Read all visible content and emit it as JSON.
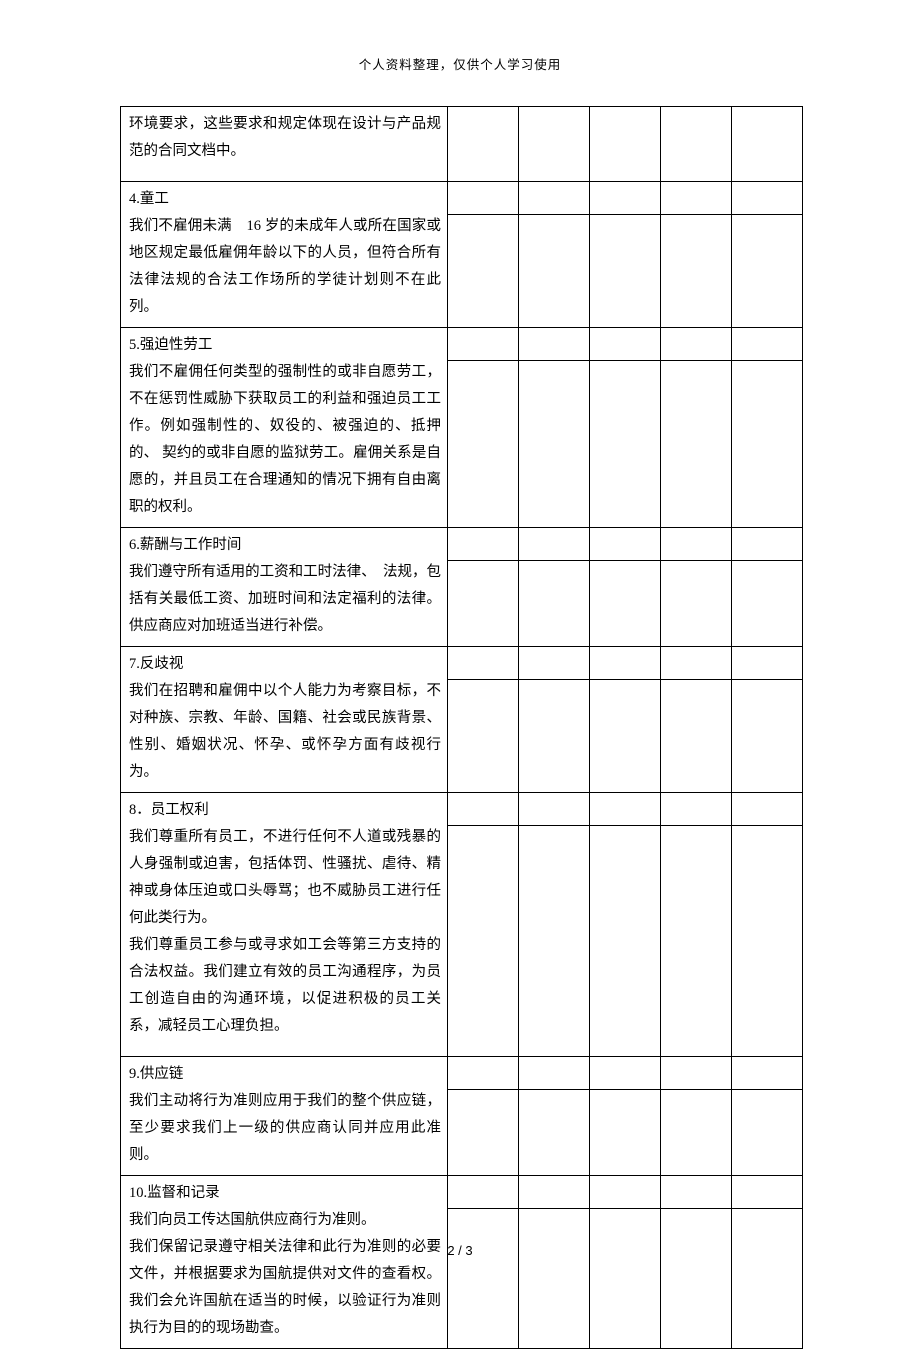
{
  "header": "个人资料整理，仅供个人学习使用",
  "footer": "2 / 3",
  "rows": [
    {
      "title": "",
      "body": "环境要求，这些要求和规定体现在设计与产品规范的合同文档中。",
      "extra_spacer": true,
      "no_upper_boxes": true
    },
    {
      "title": "4.童工",
      "body": "我们不雇佣未满　16 岁的未成年人或所在国家或地区规定最低雇佣年龄以下的人员，但符合所有法律法规的合法工作场所的学徒计划则不在此列。"
    },
    {
      "title": "5.强迫性劳工",
      "body": "我们不雇佣任何类型的强制性的或非自愿劳工，不在惩罚性威胁下获取员工的利益和强迫员工工作。例如强制性的、奴役的、被强迫的、抵押的、 契约的或非自愿的监狱劳工。雇佣关系是自愿的，并且员工在合理通知的情况下拥有自由离职的权利。"
    },
    {
      "title": "6.薪酬与工作时间",
      "body": "我们遵守所有适用的工资和工时法律、　法规，包括有关最低工资、加班时间和法定福利的法律。供应商应对加班适当进行补偿。"
    },
    {
      "title": "7.反歧视",
      "body": "我们在招聘和雇佣中以个人能力为考察目标，不对种族、宗教、年龄、国籍、社会或民族背景、性别、婚姻状况、怀孕、或怀孕方面有歧视行为。"
    },
    {
      "title": "8．员工权利",
      "body": "我们尊重所有员工，不进行任何不人道或残暴的人身强制或迫害，包括体罚、性骚扰、虐待、精神或身体压迫或口头辱骂；也不威胁员工进行任何此类行为。\n我们尊重员工参与或寻求如工会等第三方支持的合法权益。我们建立有效的员工沟通程序，为员工创造自由的沟通环境，以促进积极的员工关系，减轻员工心理负担。",
      "extra_spacer": true
    },
    {
      "title": "9.供应链",
      "body": "我们主动将行为准则应用于我们的整个供应链，至少要求我们上一级的供应商认同并应用此准则。"
    },
    {
      "title": "10.监督和记录",
      "body": "我们向员工传达国航供应商行为准则。\n我们保留记录遵守相关法律和此行为准则的必要文件，并根据要求为国航提供对文件的查看权。我们会允许国航在适当的时候，以验证行为准则执行为目的的现场勘查。"
    }
  ]
}
